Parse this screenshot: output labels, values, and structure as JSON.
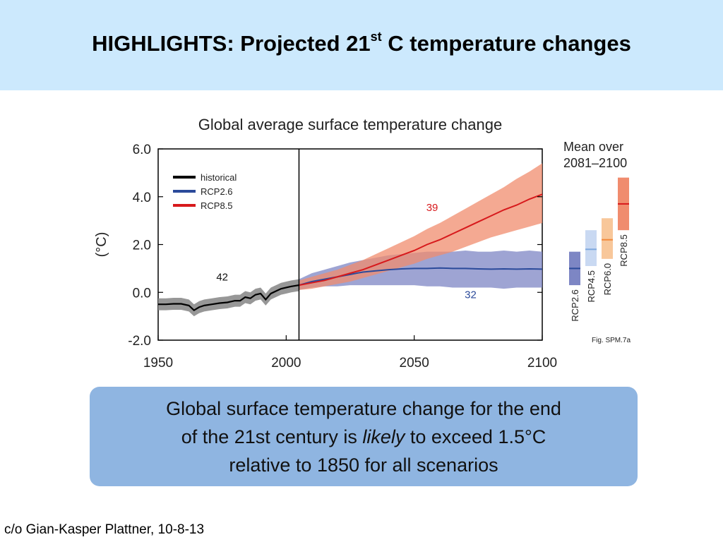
{
  "slide": {
    "title_main": "HIGHLIGHTS:  Projected 21",
    "title_sup": "st",
    "title_end": " C temperature changes",
    "note": {
      "line1": "Global surface temperature change for the end",
      "line2_pre": "of the 21st century is ",
      "line2_em": "likely",
      "line2_post": " to exceed 1.5°C",
      "line3": "relative to 1850 for all scenarios"
    },
    "credit": "c/o Gian-Kasper Plattner, 10-8-13"
  },
  "chart_data": {
    "type": "line",
    "title": "Global average surface temperature change",
    "ylabel": "(°C)",
    "xlim": [
      1950,
      2100
    ],
    "ylim": [
      -2.0,
      6.0
    ],
    "xticks": [
      "1950",
      "2000",
      "2050",
      "2100"
    ],
    "yticks": [
      "6.0",
      "4.0",
      "2.0",
      "0.0",
      "-2.0"
    ],
    "vline_x": 2005,
    "legend": {
      "placement": "top-left",
      "entries": [
        "historical",
        "RCP2.6",
        "RCP8.5"
      ]
    },
    "colors": {
      "historical": "#000000",
      "historical_band": "#8c8c8c",
      "rcp26": "#2b4a9a",
      "rcp26_band": "#7d86c4",
      "rcp45": "#7fa8de",
      "rcp45_band": "#c9d9f2",
      "rcp60": "#f28a3c",
      "rcp60_band": "#f8c79a",
      "rcp85": "#d7191c",
      "rcp85_band": "#f08c6e"
    },
    "series": [
      {
        "name": "historical",
        "x": [
          1950,
          1953,
          1956,
          1959,
          1962,
          1964,
          1966,
          1968,
          1971,
          1974,
          1977,
          1980,
          1982,
          1984,
          1986,
          1988,
          1990,
          1992,
          1994,
          1996,
          1998,
          2000,
          2002,
          2005
        ],
        "y": [
          -0.5,
          -0.5,
          -0.48,
          -0.48,
          -0.55,
          -0.75,
          -0.62,
          -0.55,
          -0.5,
          -0.45,
          -0.42,
          -0.35,
          -0.35,
          -0.2,
          -0.25,
          -0.1,
          -0.05,
          -0.3,
          -0.05,
          0.05,
          0.15,
          0.2,
          0.25,
          0.3
        ],
        "band_halfwidth": 0.25,
        "count_label": "42",
        "count_label_pos": [
          1975,
          0.5
        ]
      },
      {
        "name": "RCP2.6",
        "x": [
          2005,
          2010,
          2015,
          2020,
          2025,
          2030,
          2035,
          2040,
          2045,
          2050,
          2055,
          2060,
          2065,
          2070,
          2075,
          2080,
          2085,
          2090,
          2095,
          2100
        ],
        "y": [
          0.3,
          0.45,
          0.55,
          0.65,
          0.75,
          0.85,
          0.9,
          0.95,
          0.98,
          1.0,
          1.0,
          1.02,
          1.0,
          1.0,
          0.98,
          0.97,
          0.98,
          0.97,
          0.98,
          0.97
        ],
        "lower": [
          0.1,
          0.2,
          0.25,
          0.25,
          0.3,
          0.3,
          0.3,
          0.3,
          0.3,
          0.3,
          0.25,
          0.25,
          0.2,
          0.2,
          0.2,
          0.2,
          0.15,
          0.2,
          0.2,
          0.2
        ],
        "upper": [
          0.55,
          0.8,
          0.95,
          1.1,
          1.25,
          1.35,
          1.45,
          1.55,
          1.6,
          1.65,
          1.7,
          1.7,
          1.7,
          1.75,
          1.7,
          1.7,
          1.75,
          1.7,
          1.75,
          1.7
        ],
        "count_label": "32",
        "count_label_pos": [
          2072,
          -0.25
        ]
      },
      {
        "name": "RCP8.5",
        "x": [
          2005,
          2010,
          2015,
          2020,
          2025,
          2030,
          2035,
          2040,
          2045,
          2050,
          2055,
          2060,
          2065,
          2070,
          2075,
          2080,
          2085,
          2090,
          2095,
          2100
        ],
        "y": [
          0.3,
          0.4,
          0.5,
          0.65,
          0.8,
          0.95,
          1.15,
          1.35,
          1.55,
          1.75,
          2.0,
          2.2,
          2.45,
          2.7,
          2.95,
          3.2,
          3.45,
          3.65,
          3.9,
          4.1
        ],
        "lower": [
          0.1,
          0.15,
          0.25,
          0.35,
          0.45,
          0.6,
          0.75,
          0.9,
          1.05,
          1.2,
          1.4,
          1.55,
          1.7,
          1.9,
          2.1,
          2.3,
          2.45,
          2.6,
          2.75,
          2.9
        ],
        "upper": [
          0.5,
          0.65,
          0.8,
          0.95,
          1.15,
          1.35,
          1.6,
          1.85,
          2.1,
          2.35,
          2.65,
          2.9,
          3.2,
          3.5,
          3.8,
          4.1,
          4.4,
          4.75,
          5.05,
          5.4
        ],
        "count_label": "39",
        "count_label_pos": [
          2057,
          3.4
        ]
      }
    ],
    "side_panel": {
      "title_line1": "Mean over",
      "title_line2": "2081–2100",
      "bars": [
        {
          "label": "RCP2.6",
          "low": 0.3,
          "high": 1.7,
          "mean": 1.0
        },
        {
          "label": "RCP4.5",
          "low": 1.1,
          "high": 2.6,
          "mean": 1.8
        },
        {
          "label": "RCP6.0",
          "low": 1.4,
          "high": 3.1,
          "mean": 2.2
        },
        {
          "label": "RCP8.5",
          "low": 2.6,
          "high": 4.8,
          "mean": 3.7
        }
      ]
    },
    "fig_ref": "Fig. SPM.7a"
  }
}
